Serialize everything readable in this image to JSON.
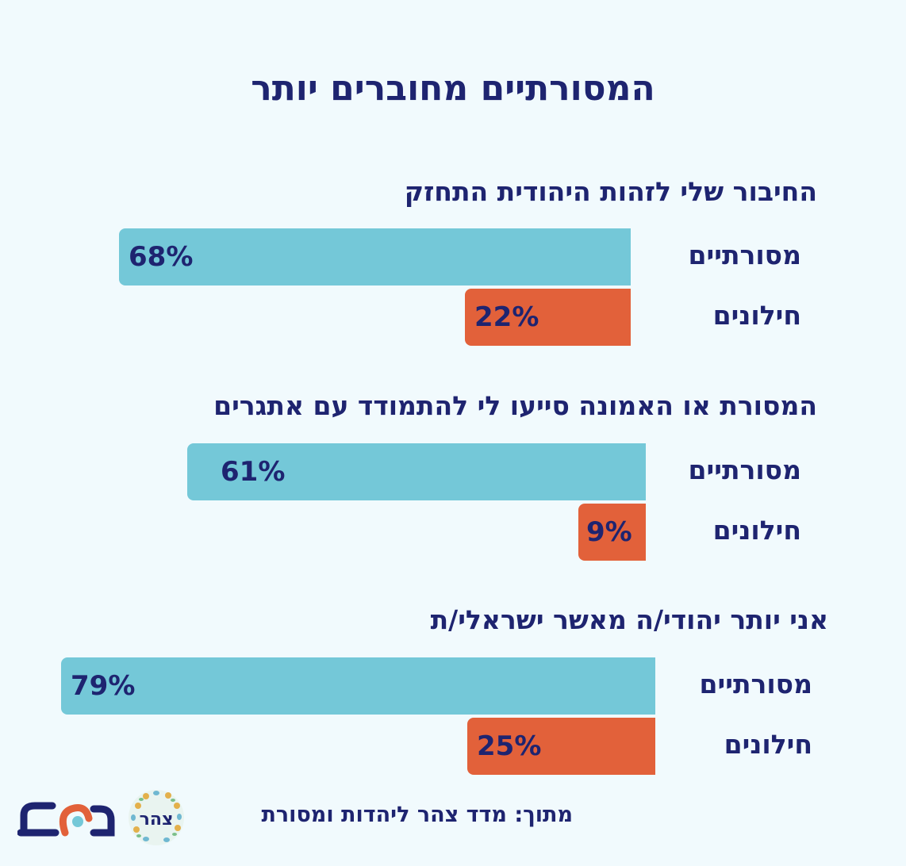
{
  "title": "המסורתיים מחוברים יותר",
  "colors": {
    "traditional": "#74c8d8",
    "secular": "#e2613a",
    "text": "#1e2470",
    "background": "#f1fafd"
  },
  "chart_data": {
    "type": "bar",
    "orientation": "horizontal",
    "groups": [
      {
        "title": "החיבור שלי לזהות היהודית התחזק",
        "bars": [
          {
            "label": "מסורתיים",
            "value": 68,
            "display": "68%"
          },
          {
            "label": "חילונים",
            "value": 22,
            "display": "22%"
          }
        ]
      },
      {
        "title": "המסורת או האמונה סייעו לי להתמודד עם אתגרים",
        "bars": [
          {
            "label": "מסורתיים",
            "value": 61,
            "display": "61%"
          },
          {
            "label": "חילונים",
            "value": 9,
            "display": "9%"
          }
        ]
      },
      {
        "title": "אני יותר יהודי/ה מאשר ישראלי/ת",
        "bars": [
          {
            "label": "מסורתיים",
            "value": 79,
            "display": "79%"
          },
          {
            "label": "חילונים",
            "value": 25,
            "display": "25%"
          }
        ]
      }
    ]
  },
  "footer": {
    "source": "מתוך: מדד צהר ליהדות ומסורת",
    "logo_zohar_text": "צהר",
    "logo_mashav": "משב"
  }
}
